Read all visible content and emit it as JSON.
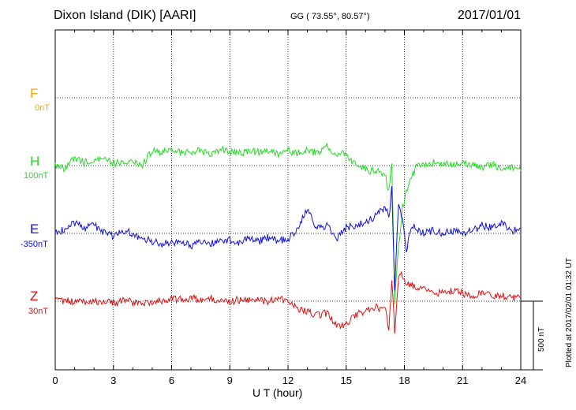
{
  "header": {
    "station": "Dixon Island (DIK)  [AARI]",
    "coords": "GG ( 73.55°,  80.57°)",
    "date": "2017/01/01"
  },
  "plotted_note": "Plotted at 2017/02/01 01:32 UT",
  "colors": {
    "F": "#f5a800",
    "H": "#22dd22",
    "E": "#1010dd",
    "Z": "#dd1111"
  },
  "chart_data": {
    "type": "line",
    "xlabel": "U T (hour)",
    "xlim": [
      0,
      24
    ],
    "xticks": [
      0,
      3,
      6,
      9,
      12,
      15,
      18,
      21,
      24
    ],
    "scale_label": "500 nT",
    "components": [
      {
        "name": "F",
        "baseline": "0nT",
        "values": []
      },
      {
        "name": "H",
        "baseline": "100nT",
        "x": [
          0,
          0.5,
          1,
          1.5,
          2,
          2.5,
          3,
          3.5,
          4,
          4.5,
          5,
          5.5,
          6,
          6.5,
          7,
          7.5,
          8,
          8.5,
          9,
          9.5,
          10,
          10.5,
          11,
          11.5,
          12,
          12.5,
          13,
          13.5,
          14,
          14.5,
          15,
          15.5,
          16,
          16.5,
          17,
          17.2,
          17.35,
          17.5,
          17.7,
          17.9,
          18.1,
          18.4,
          18.7,
          19,
          19.5,
          20,
          20.5,
          21,
          21.5,
          22,
          22.5,
          23,
          23.5,
          24
        ],
        "values": [
          0,
          -20,
          60,
          20,
          50,
          40,
          20,
          10,
          40,
          5,
          110,
          100,
          110,
          90,
          100,
          110,
          80,
          120,
          100,
          90,
          110,
          100,
          110,
          80,
          110,
          90,
          120,
          90,
          140,
          90,
          80,
          0,
          -30,
          -40,
          -60,
          -200,
          20,
          -1000,
          -600,
          -300,
          -200,
          -80,
          20,
          0,
          20,
          20,
          0,
          30,
          0,
          -20,
          10,
          -20,
          -10,
          -40
        ]
      },
      {
        "name": "E",
        "baseline": "-350nT",
        "x": [
          0,
          0.5,
          1,
          1.5,
          2,
          2.5,
          3,
          3.5,
          4,
          4.5,
          5,
          5.5,
          6,
          6.5,
          7,
          7.5,
          8,
          8.5,
          9,
          9.5,
          10,
          10.5,
          11,
          11.5,
          12,
          12.5,
          13,
          13.5,
          14,
          14.5,
          15,
          15.5,
          16,
          16.5,
          17,
          17.2,
          17.35,
          17.5,
          17.7,
          17.9,
          18.1,
          18.4,
          18.7,
          19,
          19.5,
          20,
          20.5,
          21,
          21.5,
          22,
          22.5,
          23,
          23.5,
          24
        ],
        "values": [
          0,
          30,
          80,
          40,
          60,
          10,
          -20,
          20,
          0,
          -40,
          -60,
          -80,
          -70,
          -60,
          -90,
          -60,
          -80,
          -60,
          -50,
          -70,
          -40,
          -60,
          -30,
          -60,
          -40,
          40,
          180,
          30,
          60,
          -40,
          40,
          60,
          80,
          130,
          200,
          120,
          320,
          -400,
          200,
          120,
          -120,
          60,
          20,
          0,
          20,
          0,
          20,
          0,
          20,
          60,
          40,
          80,
          20,
          40
        ]
      },
      {
        "name": "Z",
        "baseline": "30nT",
        "x": [
          0,
          0.5,
          1,
          1.5,
          2,
          2.5,
          3,
          3.5,
          4,
          4.5,
          5,
          5.5,
          6,
          6.5,
          7,
          7.5,
          8,
          8.5,
          9,
          9.5,
          10,
          10.5,
          11,
          11.5,
          12,
          12.5,
          13,
          13.5,
          14,
          14.5,
          15,
          15.5,
          16,
          16.5,
          17,
          17.2,
          17.35,
          17.5,
          17.7,
          17.9,
          18.1,
          18.4,
          18.7,
          19,
          19.5,
          20,
          20.5,
          21,
          21.5,
          22,
          22.5,
          23,
          23.5,
          24
        ],
        "values": [
          0,
          5,
          -10,
          0,
          5,
          -10,
          -10,
          0,
          -5,
          -15,
          0,
          0,
          20,
          10,
          25,
          5,
          20,
          10,
          0,
          10,
          5,
          10,
          0,
          15,
          5,
          -60,
          -80,
          -100,
          -90,
          -180,
          -170,
          -100,
          -80,
          -40,
          -60,
          -200,
          150,
          -220,
          180,
          200,
          120,
          120,
          80,
          90,
          60,
          60,
          80,
          60,
          40,
          60,
          50,
          40,
          30,
          20
        ]
      }
    ]
  }
}
